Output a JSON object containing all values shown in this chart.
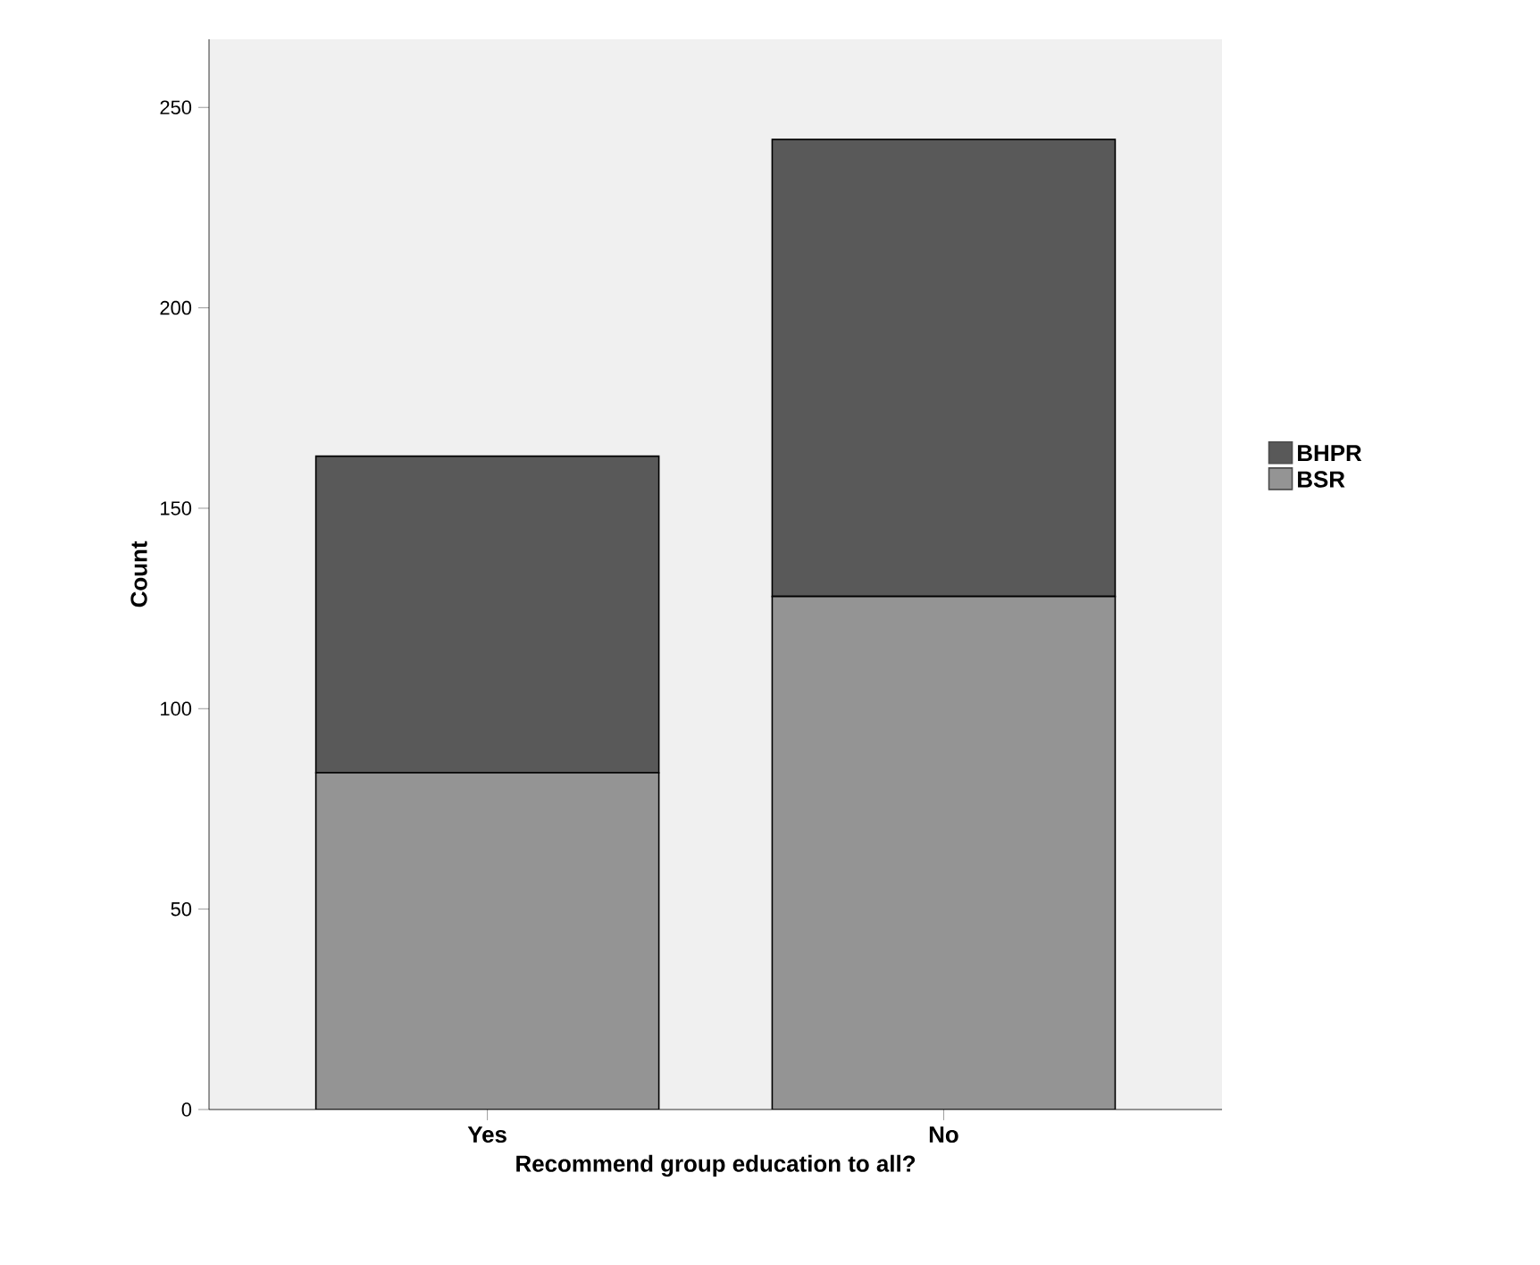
{
  "chart_data": {
    "type": "bar",
    "stacked": true,
    "xlabel": "Recommend group education to all?",
    "ylabel": "Count",
    "categories": [
      "Yes",
      "No"
    ],
    "series": [
      {
        "name": "BSR",
        "color": "#949494",
        "values": [
          84,
          128
        ]
      },
      {
        "name": "BHPR",
        "color": "#595959",
        "values": [
          79,
          114
        ]
      }
    ],
    "ylim": [
      0,
      267
    ],
    "yticks": [
      0,
      50,
      100,
      150,
      200,
      250
    ],
    "grid": false,
    "legend": "right"
  }
}
